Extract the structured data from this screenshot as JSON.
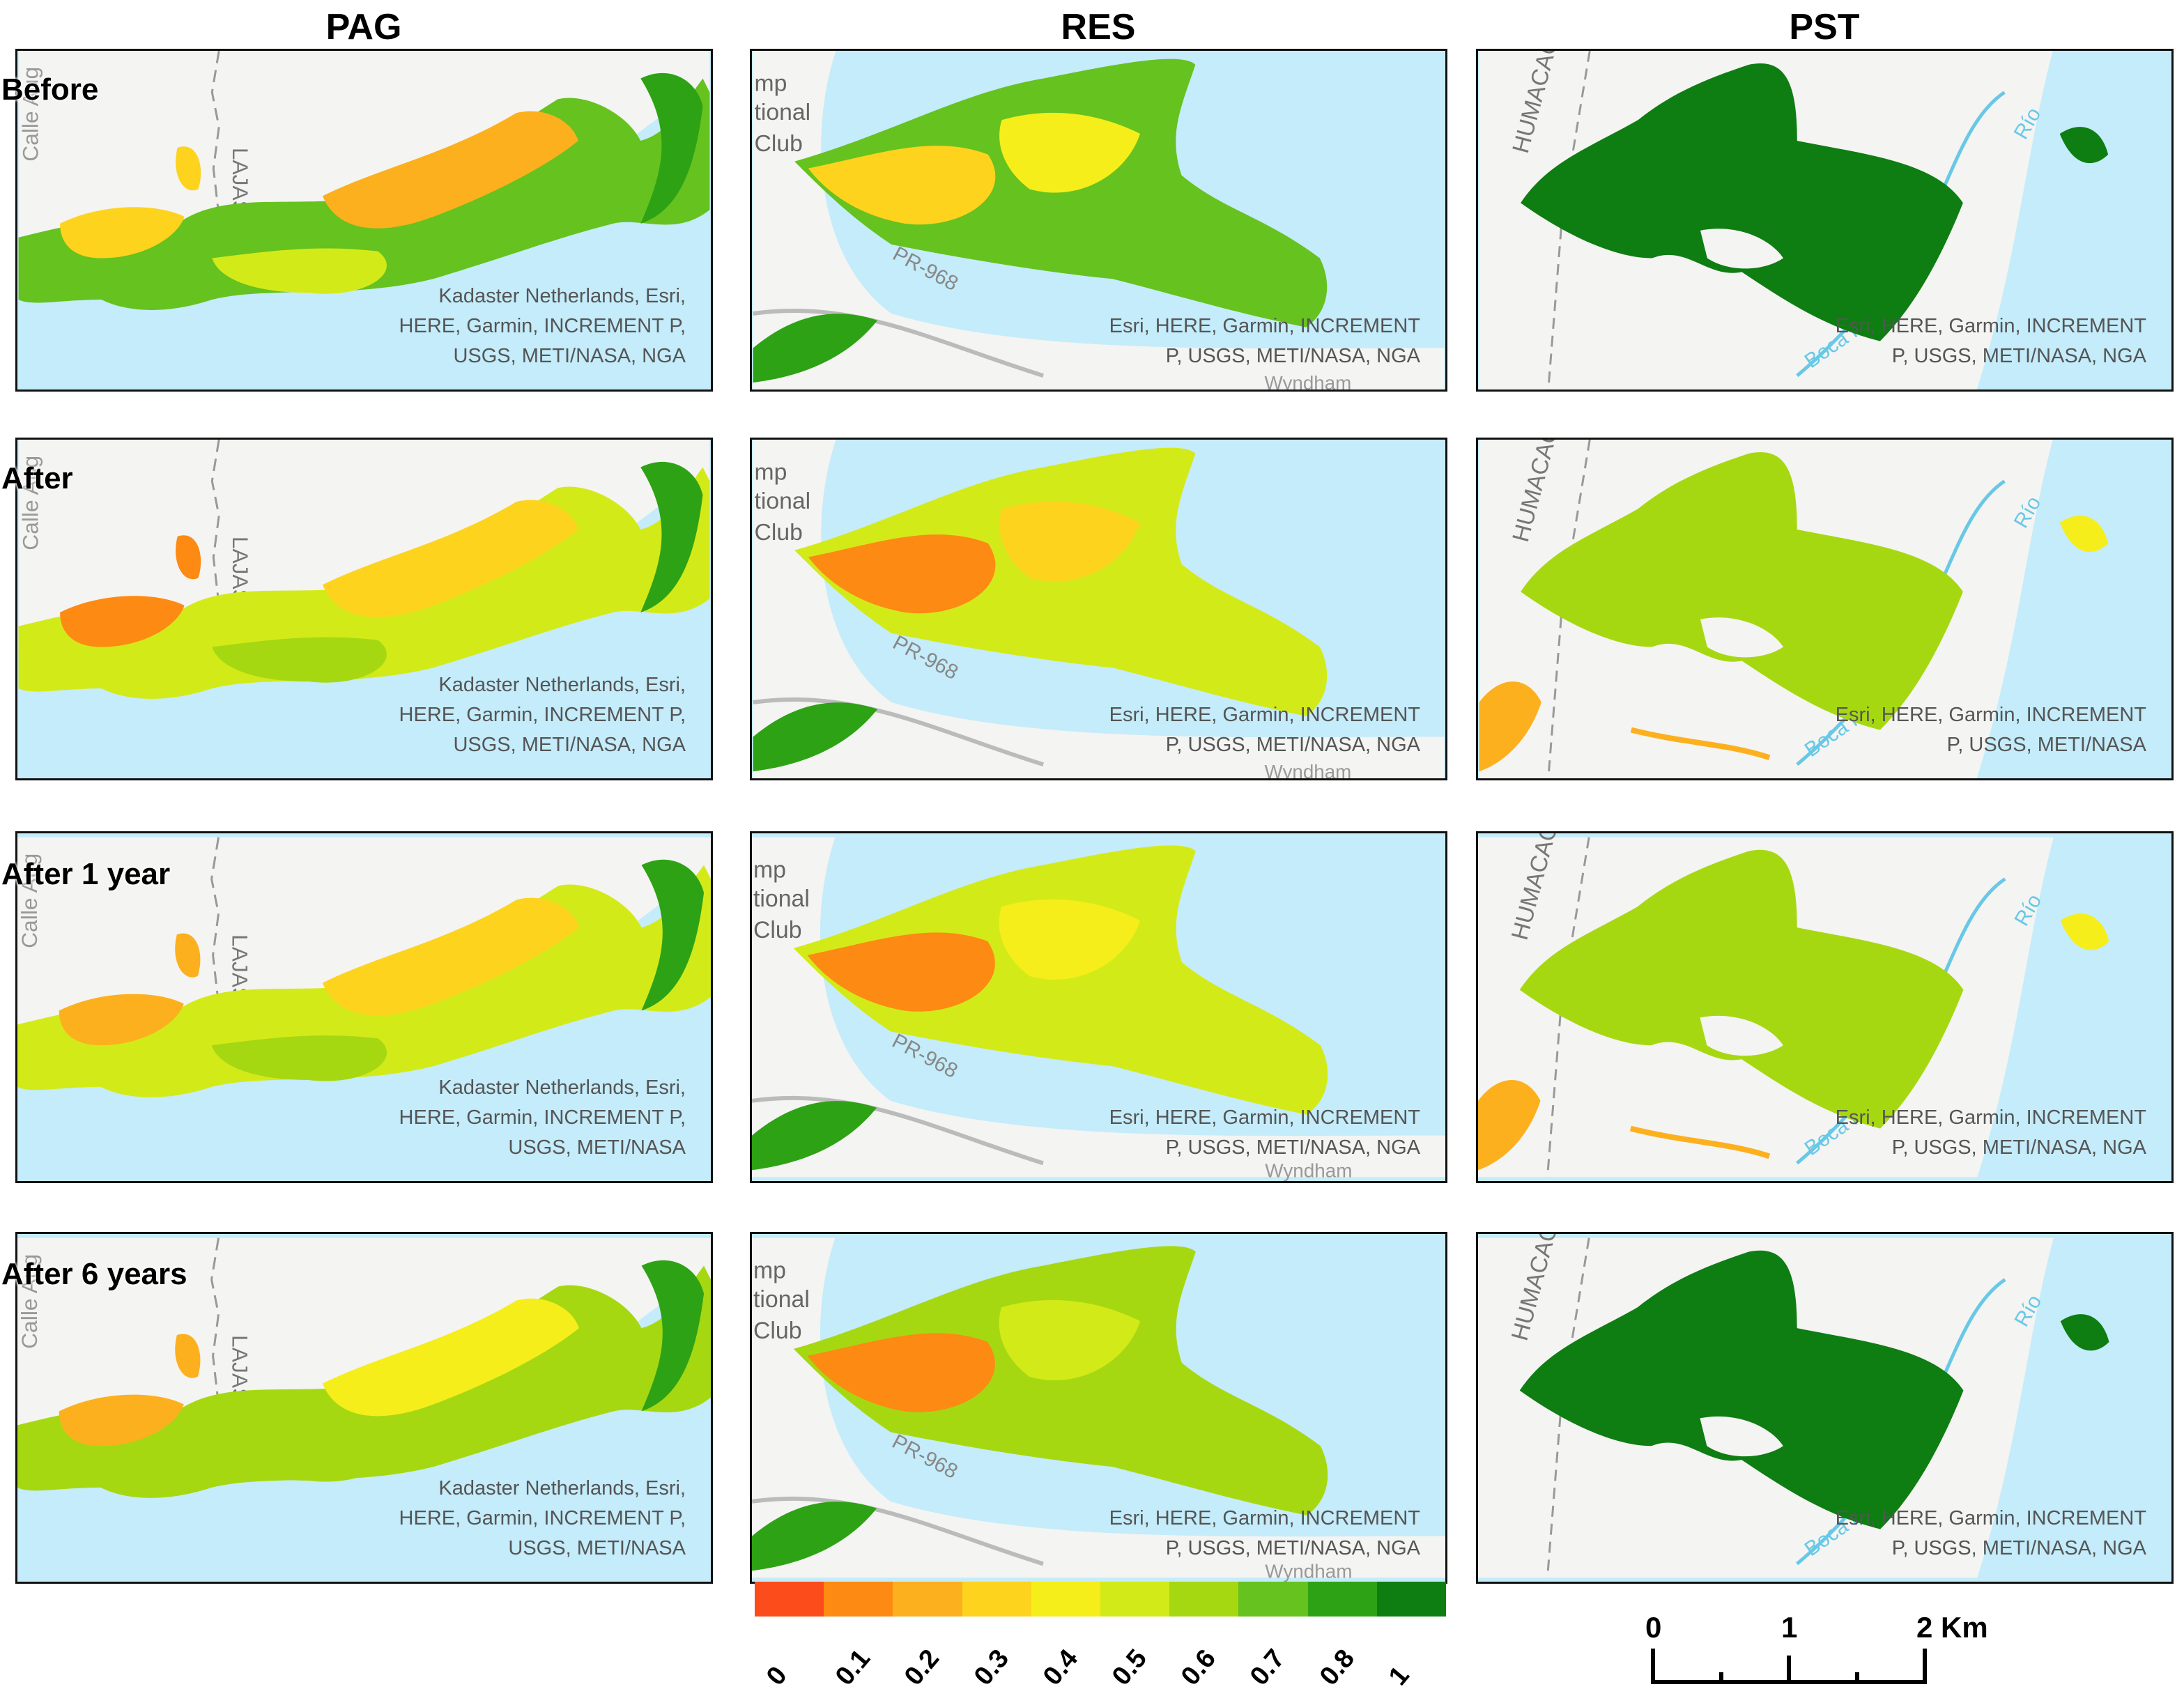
{
  "columns": [
    "PAG",
    "RES",
    "PST"
  ],
  "rows": [
    "Before",
    "After",
    "After 1 year",
    "After 6 years"
  ],
  "attributions": {
    "pag": [
      "Kadaster Netherlands, Esri,\nHERE, Garmin, INCREMENT P,\nUSGS, METI/NASA, NGA",
      "Kadaster Netherlands, Esri,\nHERE, Garmin, INCREMENT P,\nUSGS, METI/NASA, NGA",
      "Kadaster Netherlands, Esri,\nHERE, Garmin, INCREMENT P,\nUSGS, METI/NASA",
      "Kadaster Netherlands, Esri,\nHERE, Garmin, INCREMENT P,\nUSGS, METI/NASA"
    ],
    "res": [
      "Esri, HERE, Garmin, INCREMENT\nP, USGS, METI/NASA, NGA",
      "Esri, HERE, Garmin, INCREMENT\nP, USGS, METI/NASA, NGA",
      "Esri, HERE, Garmin, INCREMENT\nP, USGS, METI/NASA, NGA",
      "Esri, HERE, Garmin, INCREMENT\nP, USGS, METI/NASA, NGA"
    ],
    "pst": [
      "Esri, HERE, Garmin, INCREMENT\nP, USGS, METI/NASA, NGA",
      "Esri, HERE, Garmin, INCREMENT\nP, USGS, METI/NASA",
      "Esri, HERE, Garmin, INCREMENT\nP, USGS, METI/NASA, NGA",
      "Esri, HERE, Garmin, INCREMENT\nP, USGS, METI/NASA, NGA"
    ]
  },
  "map_labels": {
    "pag": [
      "Calle Aug",
      "LAJAS"
    ],
    "res": [
      "mp",
      "tional",
      "Club",
      "PR-968",
      "Wyndham"
    ],
    "pst": [
      "HUMACAO",
      "Río",
      "Boca Prieta"
    ]
  },
  "legend": {
    "ticks": [
      "0",
      "0.1",
      "0.2",
      "0.3",
      "0.4",
      "0.5",
      "0.6",
      "0.7",
      "0.8",
      "1"
    ],
    "colors": [
      "#fc4c1c",
      "#fd8a12",
      "#fdb01e",
      "#fdd31e",
      "#f5ee1a",
      "#d3ea19",
      "#a6d812",
      "#66c21e",
      "#2ea215",
      "#0e7d12"
    ]
  },
  "scale_bar": {
    "labels": [
      "0",
      "1",
      "2 Km"
    ]
  },
  "colors": {
    "water": "#c4ecfa",
    "land": "#f4f4f2",
    "roads": "#bbbbbb",
    "river": "#68c8e6"
  }
}
